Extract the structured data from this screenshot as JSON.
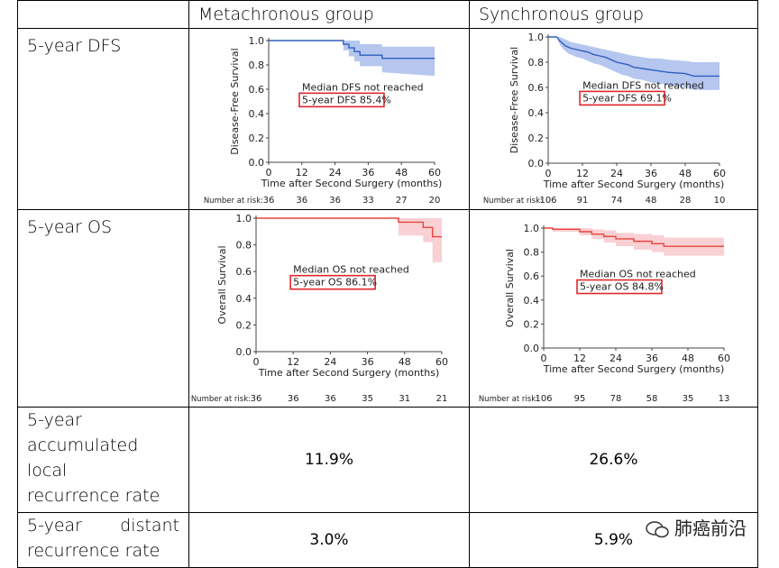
{
  "table": {
    "headers": [
      "",
      "Metachronous group",
      "Synchronous group"
    ],
    "rows": [
      {
        "label": "5-year DFS"
      },
      {
        "label": "5-year OS"
      },
      {
        "label_lines": [
          "5-year",
          "accumulated local",
          "recurrence rate"
        ],
        "values": [
          "11.9%",
          "26.6%"
        ]
      },
      {
        "label_lines": [
          "5-year distant",
          "recurrence rate"
        ],
        "values": [
          "3.0%",
          "5.9%"
        ]
      }
    ]
  },
  "watermark": {
    "text": "肺癌前沿"
  },
  "chart_data": [
    {
      "id": "dfs-meta",
      "type": "line",
      "ylabel": "Disease-Free Survival",
      "xlabel": "Time after Second Surgery (months)",
      "xlim": [
        0,
        60
      ],
      "ylim": [
        0,
        1.0
      ],
      "xticks": [
        0,
        12,
        24,
        36,
        48,
        60
      ],
      "yticks": [
        "0.0",
        "0.2",
        "0.4",
        "0.6",
        "0.8",
        "1.0"
      ],
      "line_color": "#2e5fbf",
      "band_color": "#8ea8e6",
      "series": [
        {
          "x": [
            0,
            27,
            27,
            29,
            29,
            31,
            31,
            33,
            33,
            41,
            41,
            60
          ],
          "y": [
            1.0,
            1.0,
            0.97,
            0.97,
            0.94,
            0.94,
            0.91,
            0.91,
            0.88,
            0.88,
            0.854,
            0.854
          ],
          "lower": [
            1.0,
            1.0,
            0.92,
            0.92,
            0.87,
            0.87,
            0.83,
            0.83,
            0.79,
            0.79,
            0.74,
            0.71
          ],
          "upper": [
            1.0,
            1.0,
            1.0,
            1.0,
            1.0,
            1.0,
            1.0,
            1.0,
            0.97,
            0.97,
            0.95,
            0.95
          ]
        }
      ],
      "annotations": [
        "Median DFS not reached",
        "5-year DFS 85.4%"
      ],
      "risk_label": "Number at risk:",
      "risk": [
        36,
        36,
        36,
        33,
        27,
        20
      ]
    },
    {
      "id": "dfs-sync",
      "type": "line",
      "ylabel": "Disease-Free Survival",
      "xlabel": "Time after Second Surgery (months)",
      "xlim": [
        0,
        60
      ],
      "ylim": [
        0,
        1.0
      ],
      "xticks": [
        0,
        12,
        24,
        36,
        48,
        60
      ],
      "yticks": [
        "0.0",
        "0.2",
        "0.4",
        "0.6",
        "0.8",
        "1.0"
      ],
      "line_color": "#2e5fbf",
      "band_color": "#8ea8e6",
      "series": [
        {
          "x": [
            0,
            3,
            4,
            5,
            6,
            7,
            8,
            10,
            12,
            14,
            16,
            18,
            20,
            22,
            24,
            26,
            28,
            30,
            33,
            36,
            39,
            42,
            48,
            51,
            60
          ],
          "y": [
            1.0,
            1.0,
            0.97,
            0.95,
            0.93,
            0.92,
            0.91,
            0.9,
            0.89,
            0.88,
            0.86,
            0.85,
            0.84,
            0.82,
            0.8,
            0.79,
            0.78,
            0.76,
            0.75,
            0.74,
            0.73,
            0.72,
            0.71,
            0.69,
            0.69
          ],
          "lower": [
            1.0,
            1.0,
            0.94,
            0.91,
            0.89,
            0.87,
            0.86,
            0.84,
            0.83,
            0.81,
            0.79,
            0.78,
            0.76,
            0.74,
            0.72,
            0.7,
            0.69,
            0.67,
            0.66,
            0.64,
            0.63,
            0.62,
            0.6,
            0.58,
            0.58
          ],
          "upper": [
            1.0,
            1.0,
            1.0,
            0.99,
            0.98,
            0.97,
            0.96,
            0.95,
            0.94,
            0.93,
            0.92,
            0.91,
            0.9,
            0.89,
            0.88,
            0.87,
            0.86,
            0.85,
            0.84,
            0.83,
            0.83,
            0.82,
            0.81,
            0.8,
            0.8
          ]
        }
      ],
      "annotations": [
        "Median DFS not reached",
        "5-year DFS 69.1%"
      ],
      "risk_label": "Number at risk:",
      "risk": [
        106,
        91,
        74,
        48,
        28,
        10
      ]
    },
    {
      "id": "os-meta",
      "type": "line",
      "ylabel": "Overall Survival",
      "xlabel": "Time after Second Surgery (months)",
      "xlim": [
        0,
        60
      ],
      "ylim": [
        0,
        1.0
      ],
      "xticks": [
        0,
        12,
        24,
        36,
        48,
        60
      ],
      "yticks": [
        "0.0",
        "0.2",
        "0.4",
        "0.6",
        "0.8",
        "1.0"
      ],
      "line_color": "#e8453c",
      "band_color": "#f6b7bd",
      "series": [
        {
          "x": [
            0,
            46,
            46,
            54,
            54,
            57,
            57,
            60
          ],
          "y": [
            1.0,
            1.0,
            0.97,
            0.97,
            0.93,
            0.93,
            0.861,
            0.861
          ],
          "lower": [
            1.0,
            1.0,
            0.87,
            0.87,
            0.82,
            0.82,
            0.67,
            0.67
          ],
          "upper": [
            1.0,
            1.0,
            1.0,
            1.0,
            1.0,
            1.0,
            1.0,
            1.0
          ]
        }
      ],
      "annotations": [
        "Median OS not reached",
        "5-year OS 86.1%"
      ],
      "risk_label": "Number at risk:",
      "risk": [
        36,
        36,
        36,
        35,
        31,
        21
      ]
    },
    {
      "id": "os-sync",
      "type": "line",
      "ylabel": "Overall Survival",
      "xlabel": "Time after Second Surgery (months)",
      "xlim": [
        0,
        60
      ],
      "ylim": [
        0,
        1.0
      ],
      "xticks": [
        0,
        12,
        24,
        36,
        48,
        60
      ],
      "yticks": [
        "0.0",
        "0.2",
        "0.4",
        "0.6",
        "0.8",
        "1.0"
      ],
      "line_color": "#e8453c",
      "band_color": "#f6b7bd",
      "series": [
        {
          "x": [
            0,
            3,
            3,
            12,
            12,
            16,
            16,
            20,
            20,
            24,
            24,
            30,
            30,
            36,
            36,
            40,
            40,
            60
          ],
          "y": [
            1.0,
            1.0,
            0.99,
            0.99,
            0.97,
            0.97,
            0.95,
            0.95,
            0.93,
            0.93,
            0.91,
            0.91,
            0.89,
            0.89,
            0.87,
            0.87,
            0.848,
            0.848
          ],
          "lower": [
            1.0,
            1.0,
            0.97,
            0.97,
            0.94,
            0.94,
            0.91,
            0.91,
            0.88,
            0.88,
            0.85,
            0.85,
            0.82,
            0.82,
            0.8,
            0.8,
            0.77,
            0.77
          ],
          "upper": [
            1.0,
            1.0,
            1.0,
            1.0,
            1.0,
            1.0,
            0.99,
            0.99,
            0.98,
            0.98,
            0.96,
            0.96,
            0.95,
            0.95,
            0.94,
            0.94,
            0.92,
            0.92
          ]
        }
      ],
      "annotations": [
        "Median OS not reached",
        "5-year OS 84.8%"
      ],
      "risk_label": "Number at risk:",
      "risk": [
        106,
        95,
        78,
        58,
        35,
        13
      ]
    }
  ]
}
